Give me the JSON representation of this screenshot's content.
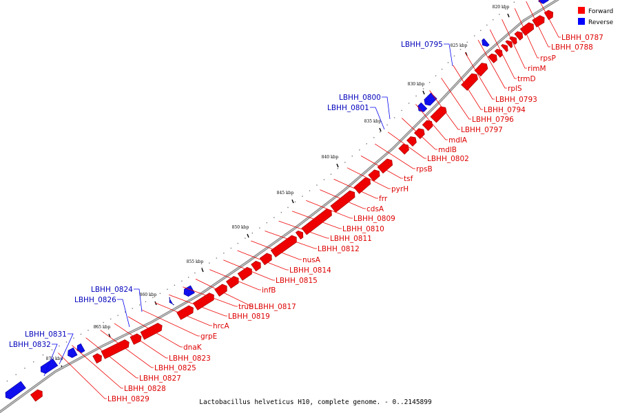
{
  "title": "Lactobacillus helveticus H10, complete genome. - 0..2145899",
  "legend": [
    {
      "label": "Forward",
      "color": "#ff0000"
    },
    {
      "label": "Reverse",
      "color": "#0000ff"
    }
  ],
  "ticks": [
    "820 kbp",
    "825 kbp",
    "830 kbp",
    "835 kbp",
    "840 kbp",
    "845 kbp",
    "850 kbp",
    "855 kbp",
    "860 kbp",
    "865 kbp",
    "870 kbp"
  ],
  "forward_labels": [
    "LBHH_0787",
    "LBHH_0788",
    "rpsP",
    "rimM",
    "trmD",
    "rplS",
    "LBHH_0793",
    "LBHH_0794",
    "LBHH_0796",
    "LBHH_0797",
    "mdlA",
    "mdlB",
    "LBHH_0802",
    "rpsB",
    "tsf",
    "pyrH",
    "frr",
    "cdsA",
    "LBHH_0809",
    "LBHH_0810",
    "LBHH_0811",
    "LBHH_0812",
    "nusA",
    "LBHH_0814",
    "LBHH_0815",
    "infB",
    "LBHH_0817",
    "truB",
    "LBHH_0819",
    "hrcA",
    "grpE",
    "dnaK",
    "LBHH_0823",
    "LBHH_0825",
    "LBHH_0827",
    "LBHH_0828",
    "LBHH_0829"
  ],
  "reverse_labels": [
    "LBHH_0795",
    "LBHH_0800",
    "LBHH_0801",
    "LBHH_0824",
    "LBHH_0826",
    "LBHH_0831",
    "LBHH_0832"
  ]
}
